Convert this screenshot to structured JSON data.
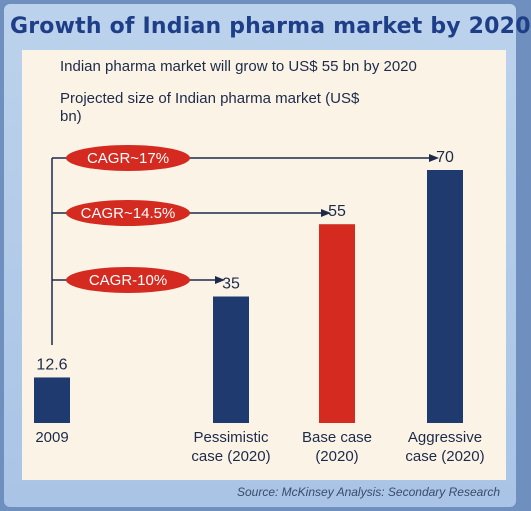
{
  "title": "Growth of Indian pharma market by 2020",
  "source": "Source: McKinsey Analysis: Secondary Research",
  "chart_data": {
    "type": "bar",
    "subtitle": "Indian pharma market will grow to US$ 55 bn by 2020",
    "ylabel": "Projected size of Indian pharma market (US$ bn)",
    "categories": [
      [
        "2009"
      ],
      [
        "Pessimistic",
        "case (2020)"
      ],
      [
        "Base case",
        "(2020)"
      ],
      [
        "Aggressive",
        "case (2020)"
      ]
    ],
    "values": [
      12.6,
      35,
      55,
      70
    ],
    "value_labels": [
      "12.6",
      "35",
      "55",
      "70"
    ],
    "bar_colors": [
      "#1e3a6e",
      "#1e3a6e",
      "#d42a20",
      "#1e3a6e"
    ],
    "annotations": [
      {
        "label": "CAGR~17%",
        "target": 3
      },
      {
        "label": "CAGR~14.5%",
        "target": 2
      },
      {
        "label": "CAGR-10%",
        "target": 1
      }
    ],
    "ylim": [
      0,
      70
    ],
    "grid": false,
    "legend": "none"
  }
}
